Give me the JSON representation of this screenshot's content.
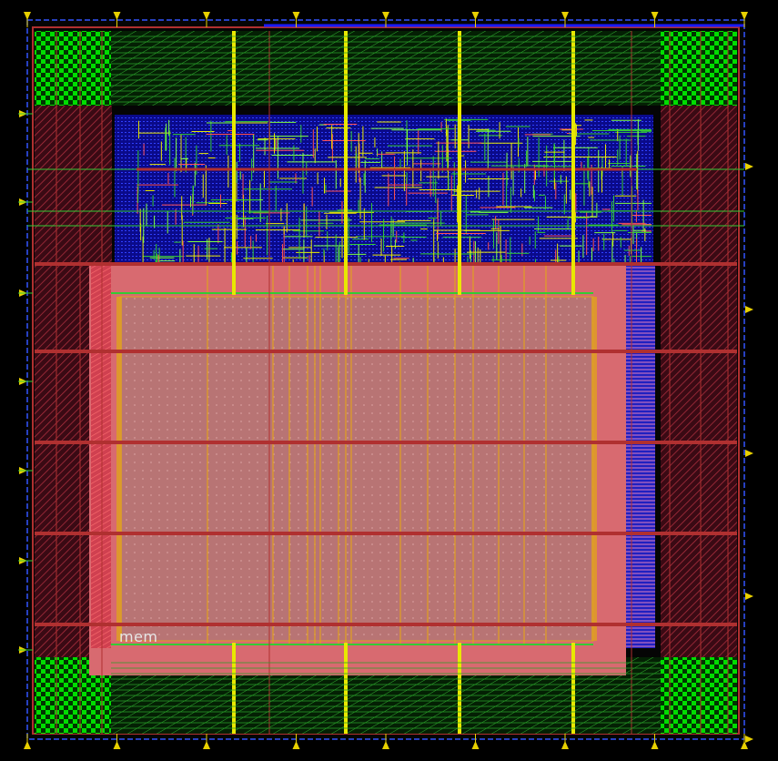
{
  "layout": {
    "macro_label": "mem",
    "colors": {
      "background": "#000000",
      "die_outline": "#3355ff",
      "pad_green": "#00dd00",
      "pad_dark": "#002200",
      "metal_red": "#b03030",
      "metal_red_light": "#ff5050",
      "metal_green": "#33cc33",
      "metal_blue": "#1a1aff",
      "metal_yellow": "#e8e800",
      "metal_orange": "#e0a020",
      "macro_fill": "#c07575",
      "macro_edge": "#e05a5a",
      "pin_marker": "#e8d000"
    },
    "pin_markers": {
      "top": 9,
      "bottom": 9,
      "left": 7,
      "right": 5
    },
    "corner_pads": [
      "top-left",
      "top-right",
      "bottom-left",
      "bottom-right"
    ]
  }
}
